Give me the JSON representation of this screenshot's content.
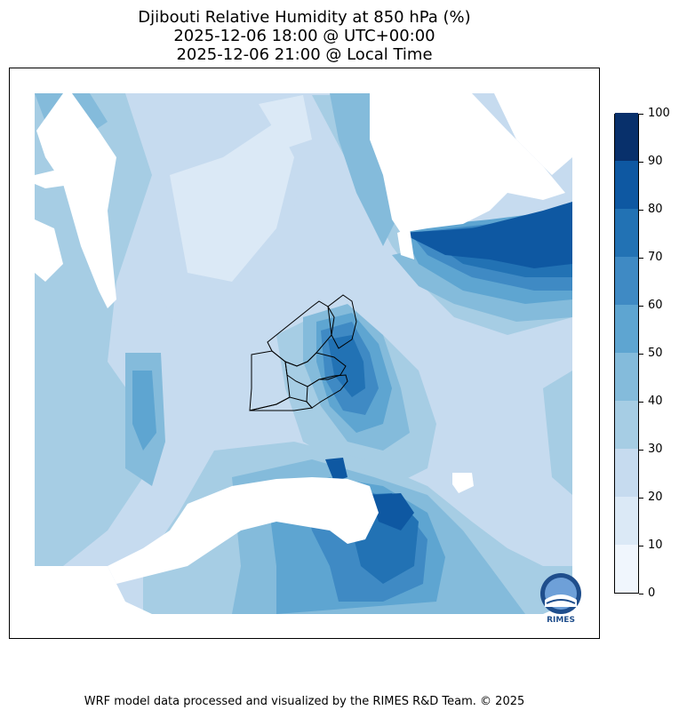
{
  "title": {
    "line1": "Djibouti Relative Humidity at 850 hPa (%)",
    "line2": "2025-12-06 18:00 @ UTC+00:00",
    "line3": "2025-12-06 21:00 @ Local Time"
  },
  "colorbar": {
    "ticks": [
      "0",
      "10",
      "20",
      "30",
      "40",
      "50",
      "60",
      "70",
      "80",
      "90",
      "100"
    ],
    "colors": [
      "#f0f6fd",
      "#dbe9f6",
      "#c6dbef",
      "#a6cde4",
      "#84bbdb",
      "#5ea5d1",
      "#3f8ac4",
      "#2272b4",
      "#0e58a2",
      "#08306b"
    ]
  },
  "logo": {
    "text": "RIMES"
  },
  "footer": {
    "text": "WRF model data processed and visualized by the RIMES R&D Team. © 2025"
  }
}
